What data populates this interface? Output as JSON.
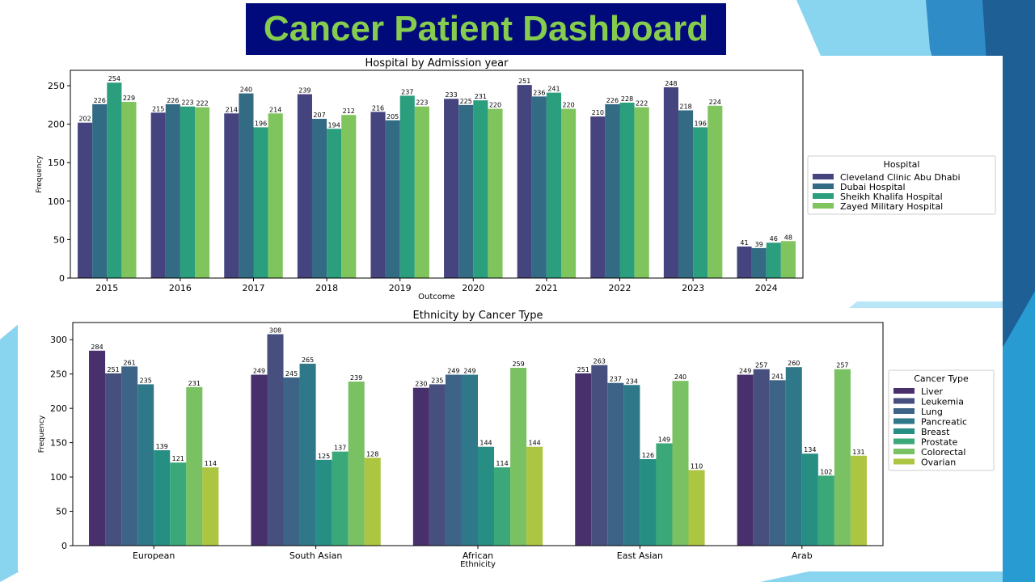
{
  "page": {
    "title": "Cancer Patient Dashboard"
  },
  "colors": {
    "title_bg": "#000a7a",
    "title_text": "#86cc4e",
    "deco_light": "#89d4ef",
    "deco_mid": "#2f8cc6",
    "deco_dark": "#1e5f96"
  },
  "chart_data": [
    {
      "type": "bar",
      "title": "Hospital by Admission year",
      "xlabel": "Outcome",
      "ylabel": "Frequency",
      "ylim": [
        0,
        270
      ],
      "yticks": [
        0,
        50,
        100,
        150,
        200,
        250
      ],
      "categories": [
        "2015",
        "2016",
        "2017",
        "2018",
        "2019",
        "2020",
        "2021",
        "2022",
        "2023",
        "2024"
      ],
      "legend_title": "Hospital",
      "legend_position": "right",
      "series": [
        {
          "name": "Cleveland Clinic Abu Dhabi",
          "color": "#46447e",
          "values": [
            202,
            215,
            214,
            239,
            216,
            233,
            251,
            210,
            248,
            41
          ]
        },
        {
          "name": "Dubai Hospital",
          "color": "#336b84",
          "values": [
            226,
            226,
            240,
            207,
            205,
            225,
            236,
            226,
            218,
            39
          ]
        },
        {
          "name": "Sheikh Khalifa Hospital",
          "color": "#2b9e7d",
          "values": [
            254,
            223,
            196,
            194,
            237,
            231,
            241,
            228,
            196,
            46
          ]
        },
        {
          "name": "Zayed Military Hospital",
          "color": "#80c45d",
          "values": [
            229,
            222,
            214,
            212,
            223,
            220,
            220,
            222,
            224,
            48
          ]
        }
      ]
    },
    {
      "type": "bar",
      "title": "Ethnicity by Cancer Type",
      "xlabel": "Ethnicity",
      "ylabel": "Frequency",
      "ylim": [
        0,
        325
      ],
      "yticks": [
        0,
        50,
        100,
        150,
        200,
        250,
        300
      ],
      "categories": [
        "European",
        "South Asian",
        "African",
        "East Asian",
        "Arab"
      ],
      "legend_title": "Cancer Type",
      "legend_position": "right",
      "series": [
        {
          "name": "Liver",
          "color": "#48306c",
          "values": [
            284,
            249,
            230,
            251,
            249
          ]
        },
        {
          "name": "Leukemia",
          "color": "#464f7e",
          "values": [
            251,
            308,
            235,
            263,
            257
          ]
        },
        {
          "name": "Lung",
          "color": "#3d6386",
          "values": [
            261,
            245,
            249,
            237,
            241
          ]
        },
        {
          "name": "Pancreatic",
          "color": "#2f7889",
          "values": [
            235,
            265,
            249,
            234,
            260
          ]
        },
        {
          "name": "Breast",
          "color": "#278e84",
          "values": [
            139,
            125,
            144,
            126,
            134
          ]
        },
        {
          "name": "Prostate",
          "color": "#3aa878",
          "values": [
            121,
            137,
            114,
            149,
            102
          ]
        },
        {
          "name": "Colorectal",
          "color": "#79c162",
          "values": [
            231,
            239,
            259,
            240,
            257
          ]
        },
        {
          "name": "Ovarian",
          "color": "#adc641",
          "values": [
            114,
            128,
            144,
            110,
            131
          ]
        }
      ]
    }
  ]
}
